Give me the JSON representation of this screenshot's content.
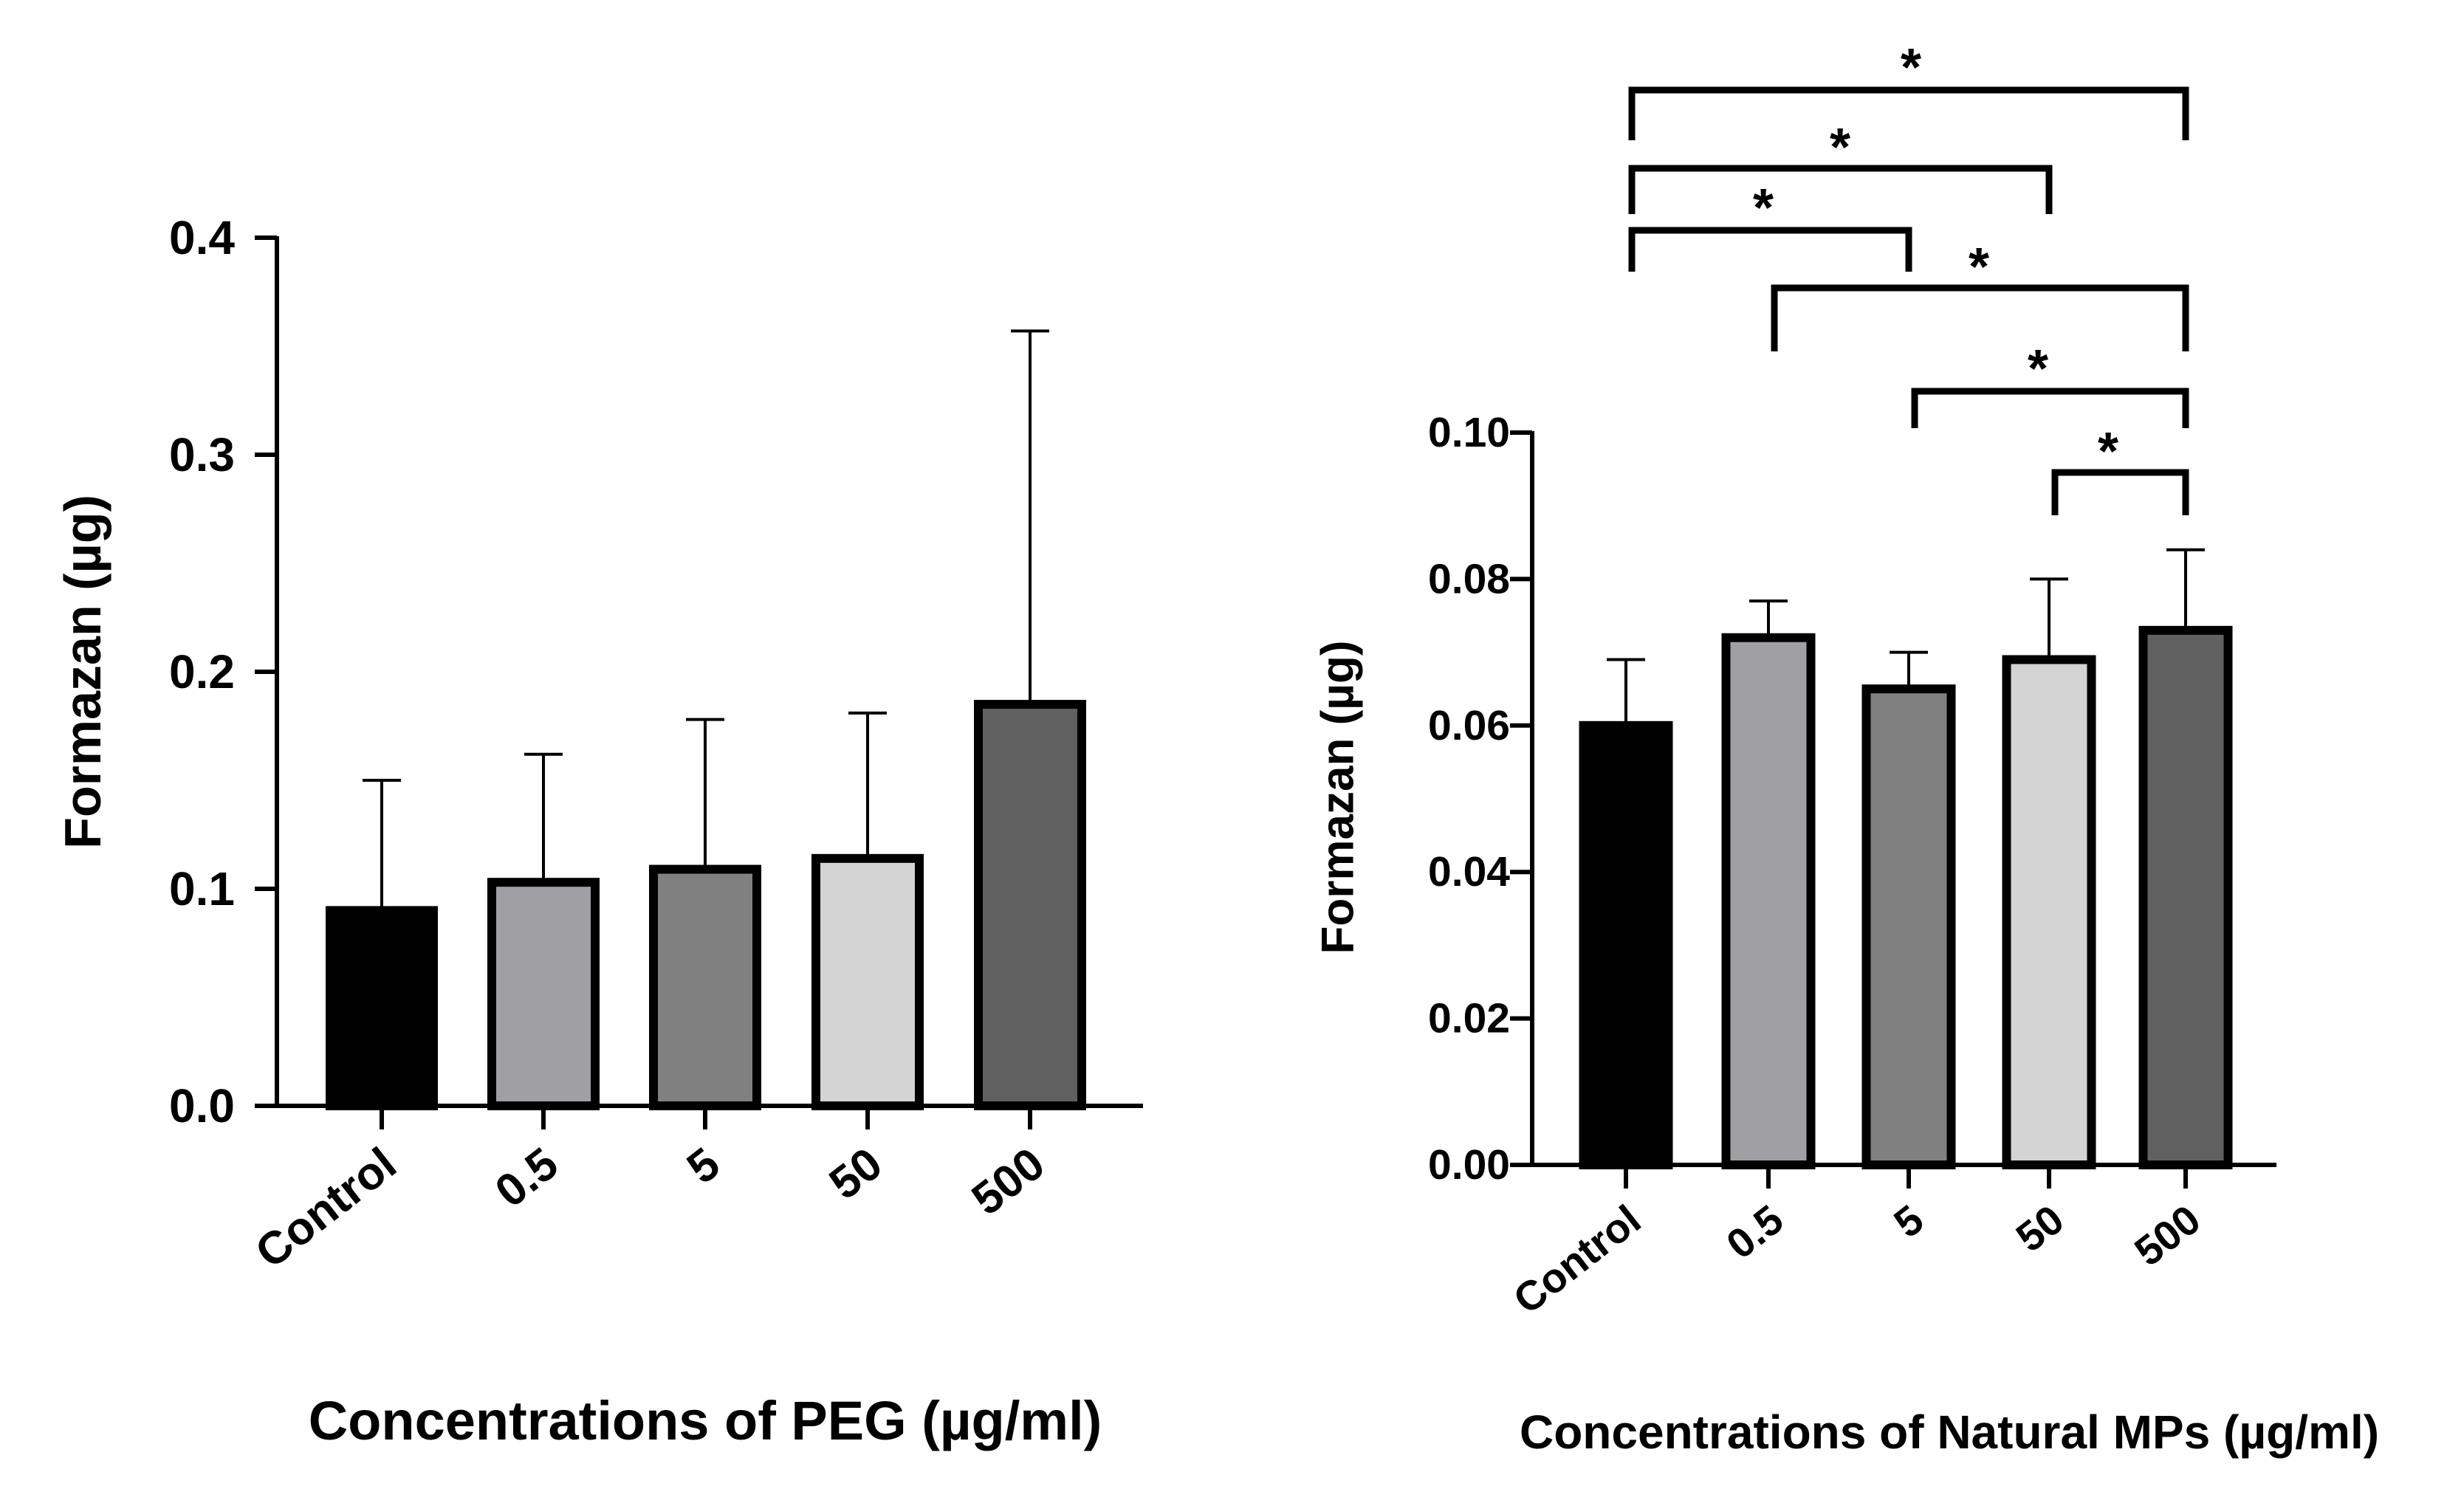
{
  "chart_data": [
    {
      "type": "bar",
      "title": "",
      "xlabel": "Concentrations of PEG (µg/ml)",
      "ylabel": "Formazan (µg)",
      "categories": [
        "Control",
        "0.5",
        "5",
        "50",
        "500"
      ],
      "values": [
        0.09,
        0.103,
        0.109,
        0.114,
        0.185
      ],
      "errors_upper": [
        0.15,
        0.162,
        0.178,
        0.181,
        0.357
      ],
      "bar_colors": [
        "#000000",
        "#a0a0a4",
        "#808080",
        "#d4d4d4",
        "#606060"
      ],
      "ylim": [
        0,
        0.4
      ],
      "yticks": [
        0.0,
        0.1,
        0.2,
        0.3,
        0.4
      ],
      "ytick_labels": [
        "0.0",
        "0.1",
        "0.2",
        "0.3",
        "0.4"
      ],
      "significance": []
    },
    {
      "type": "bar",
      "title": "",
      "xlabel": "Concentrations of Natural MPs (µg/ml)",
      "ylabel": "Formazan (µg)",
      "categories": [
        "Control",
        "0.5",
        "5",
        "50",
        "500"
      ],
      "values": [
        0.06,
        0.072,
        0.065,
        0.069,
        0.073
      ],
      "errors_upper": [
        0.069,
        0.077,
        0.07,
        0.08,
        0.084
      ],
      "bar_colors": [
        "#000000",
        "#a0a0a4",
        "#808080",
        "#d4d4d4",
        "#606060"
      ],
      "ylim": [
        0,
        0.1
      ],
      "yticks": [
        0.0,
        0.02,
        0.04,
        0.06,
        0.08,
        0.1
      ],
      "ytick_labels": [
        "0.00",
        "0.02",
        "0.04",
        "0.06",
        "0.08",
        "0.10"
      ],
      "significance": [
        {
          "from": "Control",
          "to": "500",
          "label": "*"
        },
        {
          "from": "Control",
          "to": "50",
          "label": "*"
        },
        {
          "from": "Control",
          "to": "5",
          "label": "*"
        },
        {
          "from": "0.5",
          "to": "500",
          "label": "*"
        },
        {
          "from": "5",
          "to": "500",
          "label": "*"
        },
        {
          "from": "50",
          "to": "500",
          "label": "*"
        }
      ]
    }
  ]
}
